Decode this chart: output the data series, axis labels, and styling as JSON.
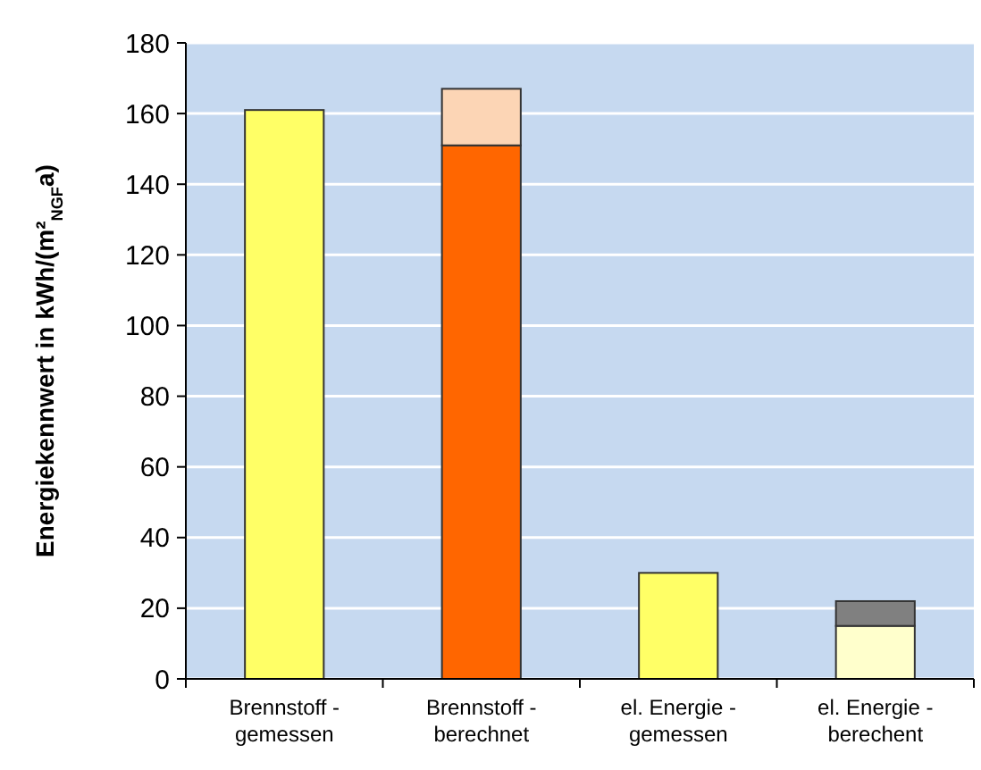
{
  "chart_data": {
    "type": "bar",
    "stacked": true,
    "ylabel": "Energiekennwert in kWh/(m²$_{NGF}$a)",
    "categories": [
      "Brennstoff - gemessen",
      "Brennstoff - berechnet",
      "el. Energie - gemessen",
      "el. Energie - berechent"
    ],
    "series": [
      {
        "colors": [
          "#ffff66",
          "#ff6600",
          "#ffff66",
          "#ffffcc"
        ],
        "values": [
          161,
          151,
          30,
          15
        ]
      },
      {
        "colors": [
          null,
          "#fcd5b5",
          null,
          "#808080"
        ],
        "values": [
          null,
          16,
          null,
          7
        ]
      }
    ],
    "ylim": [
      0,
      180
    ],
    "yticks": [
      0,
      20,
      40,
      60,
      80,
      100,
      120,
      140,
      160,
      180
    ],
    "grid": "y"
  }
}
